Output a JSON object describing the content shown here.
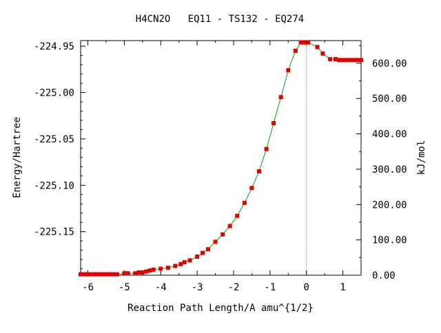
{
  "chart_data": {
    "type": "scatter",
    "title": "H4CN2O   EQ11 - TS132 - EQ274",
    "xlabel": "Reaction Path Length/A amu^{1/2}",
    "ylabel": "Energy/Hartree",
    "y2label": "kJ/mol",
    "xlim": [
      -6.2,
      1.5
    ],
    "ylim": [
      -225.197,
      -224.944
    ],
    "y2lim": [
      0,
      664
    ],
    "x_ticks": [
      -6,
      -5,
      -4,
      -3,
      -2,
      -1,
      0,
      1
    ],
    "x_tick_labels": [
      "-6",
      "-5",
      "-4",
      "-3",
      "-2",
      "-1",
      "0",
      "1"
    ],
    "y_ticks": [
      -224.95,
      -225.0,
      -225.05,
      -225.1,
      -225.15
    ],
    "y_tick_labels": [
      "-224.95",
      "-225.00",
      "-225.05",
      "-225.10",
      "-225.15"
    ],
    "y2_ticks": [
      0,
      100,
      200,
      300,
      400,
      500,
      600
    ],
    "y2_tick_labels": [
      "0.00",
      "100.00",
      "200.00",
      "300.00",
      "400.00",
      "500.00",
      "600.00"
    ],
    "ts_marker_x": 0,
    "grid": false,
    "colors": {
      "curve": "#00a000",
      "points": "#e00000",
      "point_center": "#808000",
      "ts_line": "#a0a0a0"
    },
    "series": [
      {
        "x": [
          -6.2,
          -6.1,
          -6.0,
          -5.9,
          -5.8,
          -5.7,
          -5.6,
          -5.5,
          -5.4,
          -5.3,
          -5.2,
          -5.0,
          -4.9,
          -4.7,
          -4.6,
          -4.5,
          -4.4,
          -4.3,
          -4.2,
          -4.0,
          -3.8,
          -3.6,
          -3.45,
          -3.35,
          -3.2,
          -3.0,
          -2.85,
          -2.7,
          -2.5,
          -2.3,
          -2.1,
          -1.9,
          -1.7,
          -1.5,
          -1.3,
          -1.1,
          -0.9,
          -0.7,
          -0.5,
          -0.3,
          -0.15,
          -0.05,
          0.05,
          0.3,
          0.45,
          0.65,
          0.8,
          0.9,
          1.0,
          1.1,
          1.2,
          1.3,
          1.4,
          1.5
        ],
        "y": [
          -225.196,
          -225.196,
          -225.196,
          -225.196,
          -225.196,
          -225.196,
          -225.196,
          -225.196,
          -225.196,
          -225.196,
          -225.196,
          -225.195,
          -225.195,
          -225.195,
          -225.194,
          -225.194,
          -225.193,
          -225.192,
          -225.191,
          -225.19,
          -225.189,
          -225.187,
          -225.185,
          -225.183,
          -225.181,
          -225.177,
          -225.173,
          -225.169,
          -225.161,
          -225.153,
          -225.144,
          -225.133,
          -225.119,
          -225.103,
          -225.085,
          -225.061,
          -225.033,
          -225.005,
          -224.976,
          -224.955,
          -224.946,
          -224.946,
          -224.946,
          -224.951,
          -224.958,
          -224.964,
          -224.964,
          -224.965,
          -224.965,
          -224.965,
          -224.965,
          -224.965,
          -224.965,
          -224.965
        ]
      }
    ]
  }
}
